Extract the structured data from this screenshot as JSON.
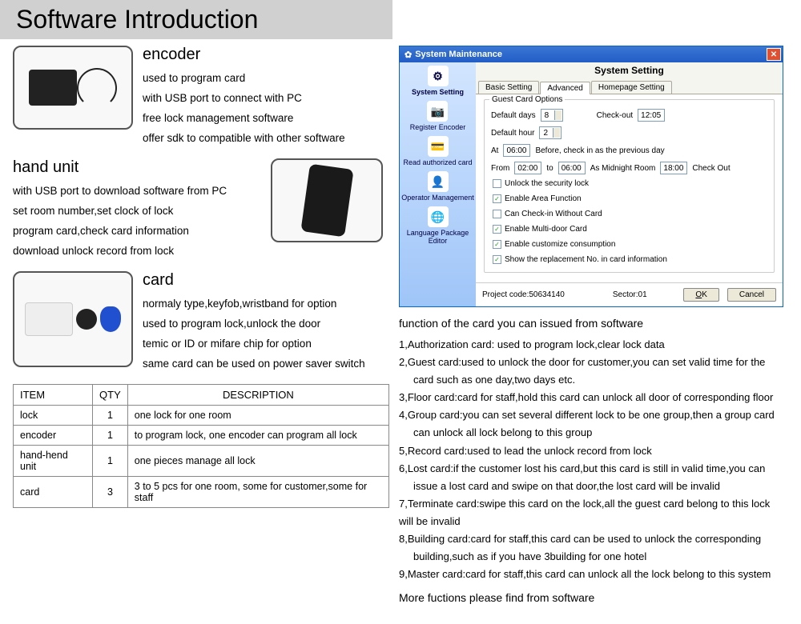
{
  "main_title": "Software Introduction",
  "encoder": {
    "title": "encoder",
    "lines": [
      "used to program card",
      "with USB port to connect with PC",
      "free lock management software",
      "offer sdk to compatible with other software"
    ]
  },
  "hand_unit": {
    "title": "hand unit",
    "lines": [
      "with USB port to download software from PC",
      "set room number,set clock of lock",
      "program card,check card information",
      "download unlock record from lock"
    ]
  },
  "card": {
    "title": "card",
    "lines": [
      "normaly type,keyfob,wristband for option",
      "used to program lock,unlock the door",
      "temic or ID or mifare chip for option",
      "same card can be used on power saver switch"
    ]
  },
  "spec_table": {
    "headers": [
      "ITEM",
      "QTY",
      "DESCRIPTION"
    ],
    "rows": [
      [
        "lock",
        "1",
        "one lock for one room"
      ],
      [
        "encoder",
        "1",
        "to program lock, one encoder can program all lock"
      ],
      [
        "hand-hend unit",
        "1",
        "one pieces manage all lock"
      ],
      [
        "card",
        "3",
        "3 to 5 pcs for one room, some for customer,some for staff"
      ]
    ]
  },
  "window": {
    "title": "System Maintenance",
    "heading": "System Setting",
    "sidebar": [
      {
        "label": "System Setting",
        "icon": "⚙"
      },
      {
        "label": "Register Encoder",
        "icon": "📷"
      },
      {
        "label": "Read authorized card",
        "icon": "💳"
      },
      {
        "label": "Operator Management",
        "icon": "👤"
      },
      {
        "label": "Language Package Editor",
        "icon": "🌐"
      }
    ],
    "tabs": [
      "Basic Setting",
      "Advanced",
      "Homepage Setting"
    ],
    "active_tab": "Advanced",
    "group_label": "Guest Card Options",
    "default_days_label": "Default days",
    "default_days_value": "8",
    "checkout_label": "Check-out",
    "checkout_value": "12:05",
    "default_hour_label": "Default hour",
    "default_hour_value": "2",
    "at_label": "At",
    "at_value": "06:00",
    "before_label": "Before, check in as the previous day",
    "from_label": "From",
    "from_value": "02:00",
    "to_label": "to",
    "to_value": "06:00",
    "midnight_label": "As Midnight Room",
    "midnight_value": "18:00",
    "checkout2_label": "Check Out",
    "checkboxes": [
      {
        "label": "Unlock the security lock",
        "checked": false
      },
      {
        "label": "Enable Area Function",
        "checked": true
      },
      {
        "label": "Can Check-in Without Card",
        "checked": false
      },
      {
        "label": "Enable Multi-door Card",
        "checked": true
      },
      {
        "label": "Enable customize consumption",
        "checked": true
      },
      {
        "label": "Show the replacement No. in card information",
        "checked": true
      }
    ],
    "project_code_label": "Project code:50634140",
    "sector_label": "Sector:01",
    "ok_label": "OK",
    "cancel_label": "Cancel"
  },
  "functions": {
    "title": "function of the card you can issued from software",
    "items": [
      "1,Authorization card: used to program lock,clear lock data",
      "2,Guest card:used to unlock the door for customer,you can set valid time for the",
      "   card such as one day,two days etc.",
      "3,Floor card:card for staff,hold this card can unlock all door of corresponding floor",
      "4,Group card:you can set several different lock to be one group,then a group card",
      "   can unlock all lock belong to this group",
      "5,Record card:used to lead the unlock record from lock",
      "6,Lost card:if the customer lost his card,but this card is still in valid time,you can",
      "   issue a lost card and swipe on that door,the lost card will be invalid",
      "7,Terminate card:swipe this card on the lock,all the guest card belong to this lock",
      "will be invalid",
      "8,Building card:card for staff,this card can be used to unlock the corresponding",
      "   building,such as if you have 3building for one hotel",
      "9,Master card:card for staff,this card can unlock all the lock belong to this system"
    ],
    "more": "More fuctions please find from software"
  }
}
